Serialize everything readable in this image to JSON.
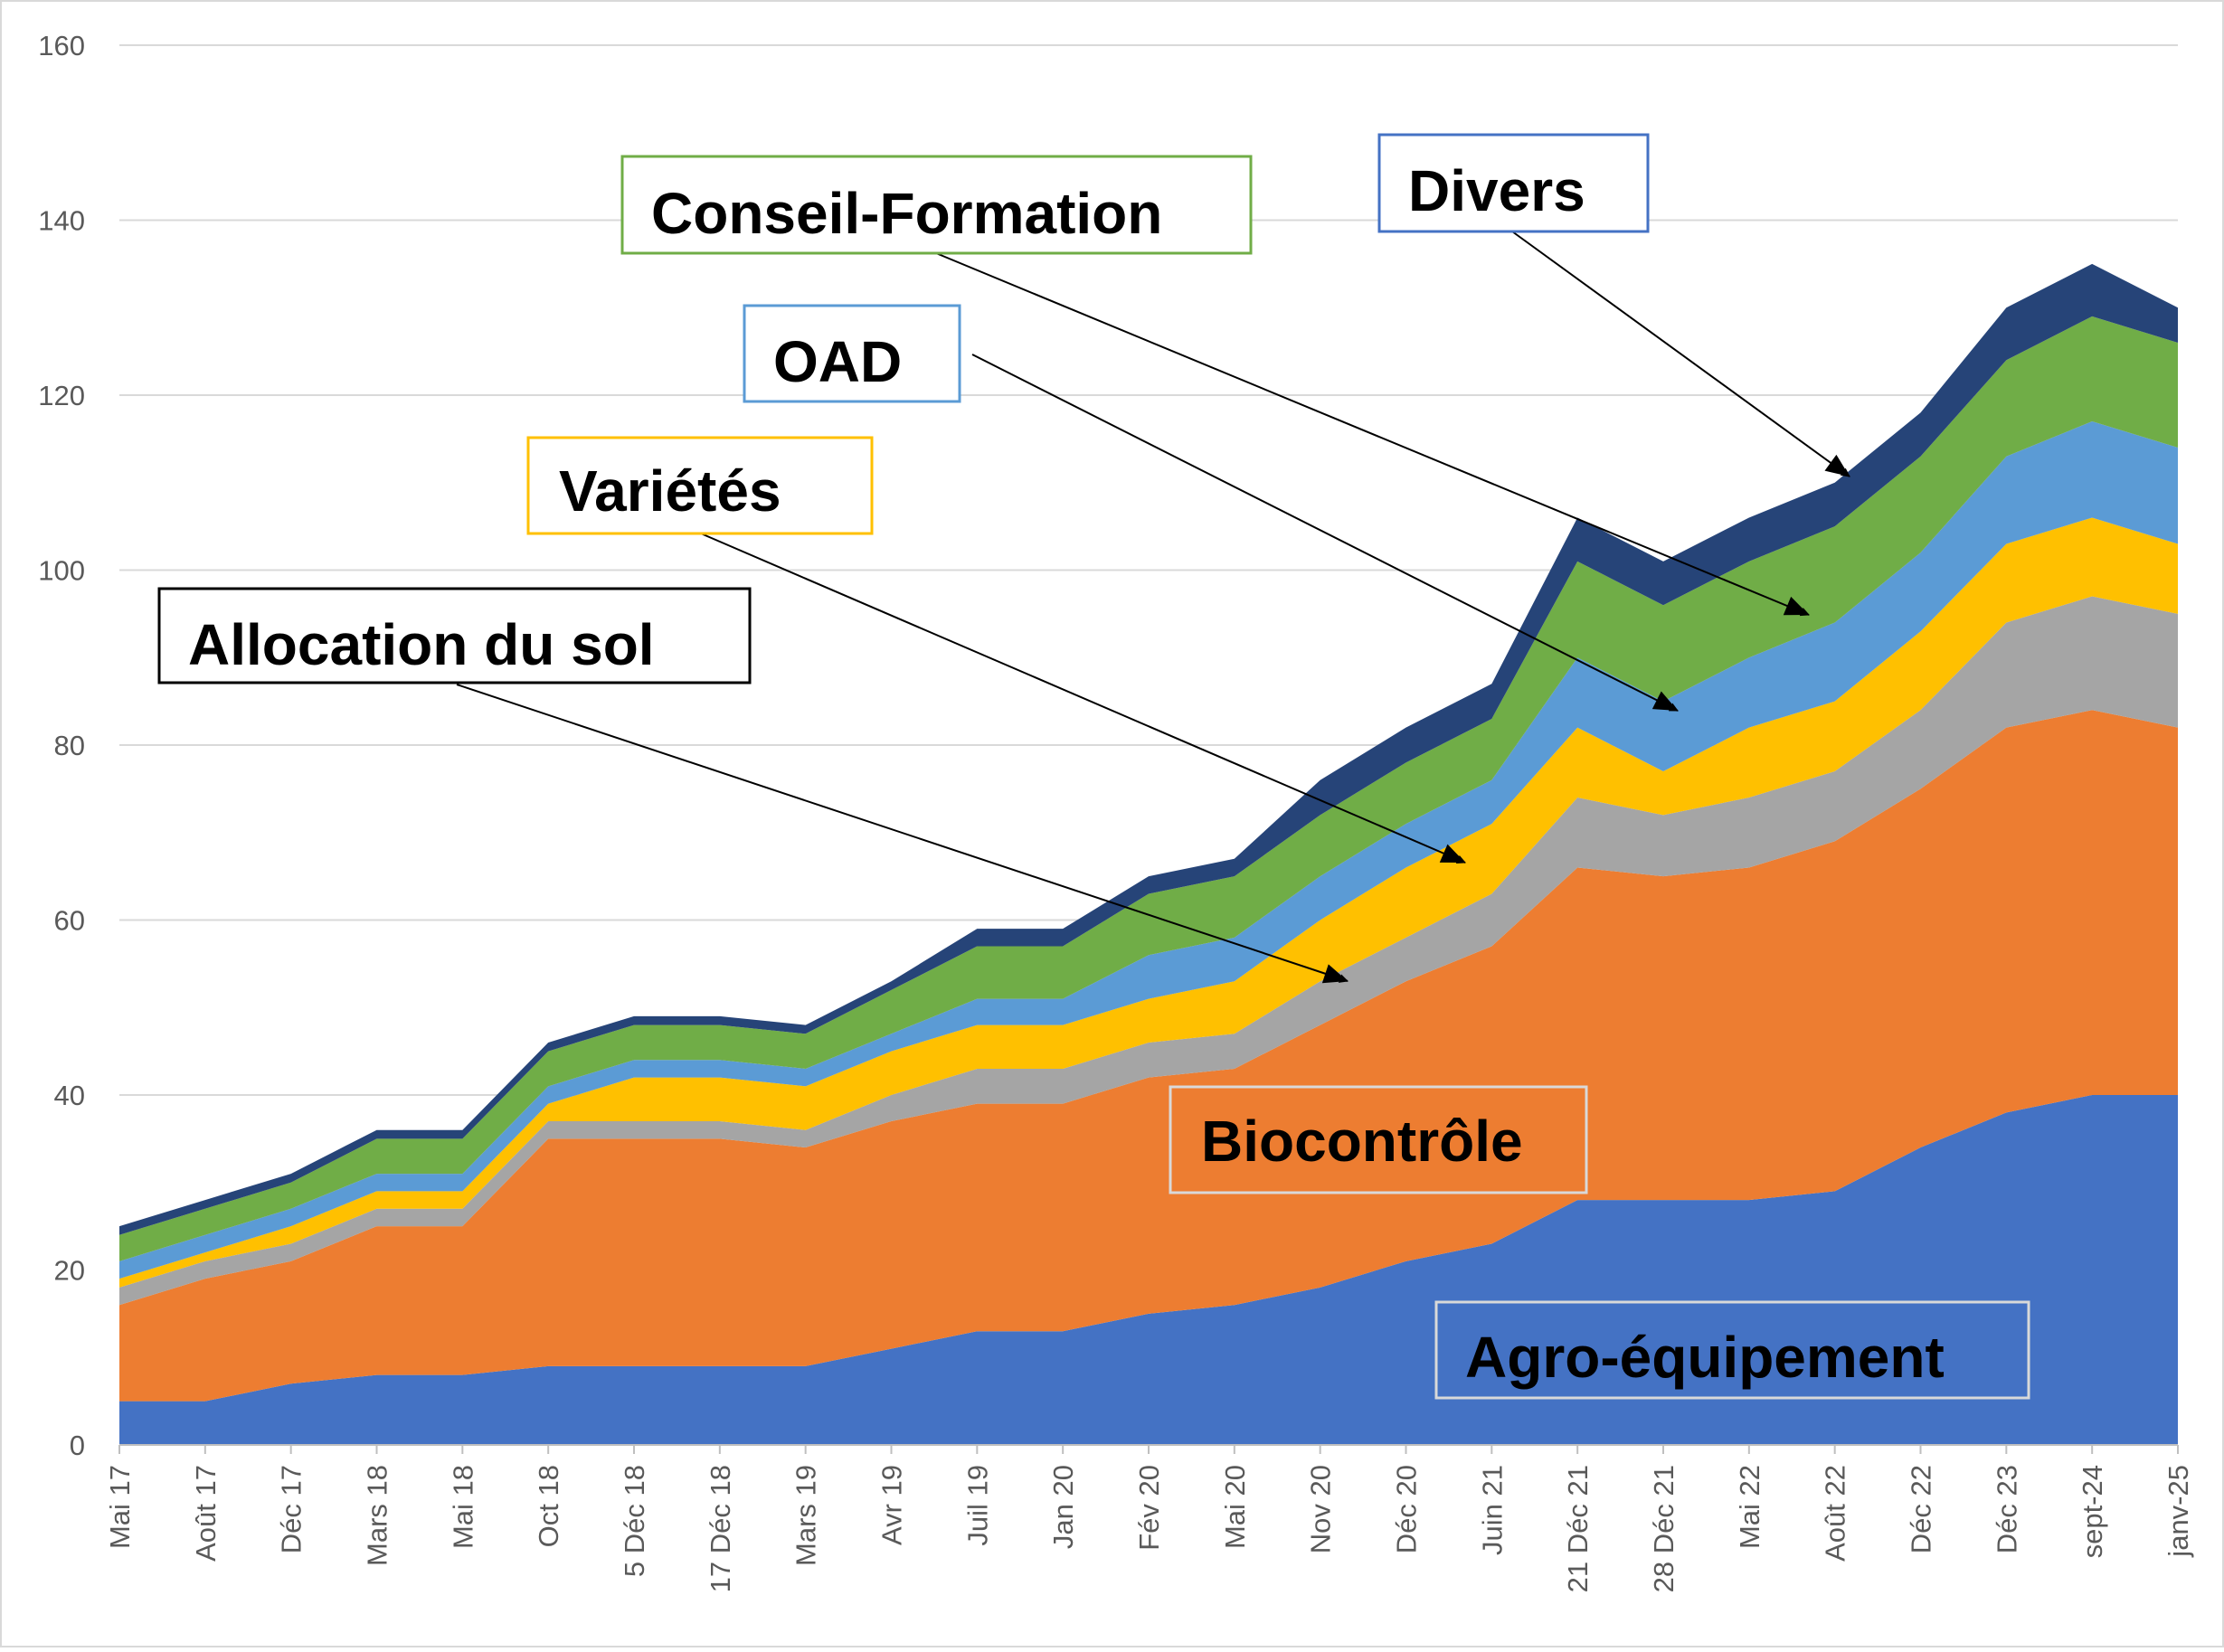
{
  "chart_data": {
    "type": "area",
    "stacked": true,
    "title": "",
    "xlabel": "",
    "ylabel": "",
    "ylim": [
      0,
      160
    ],
    "yticks": [
      0,
      20,
      40,
      60,
      80,
      100,
      120,
      140,
      160
    ],
    "grid": "horizontal",
    "legend": "none",
    "categories": [
      "Mai 17",
      "Août 17",
      "Déc 17",
      "Mars 18",
      "Mai 18",
      "Oct 18",
      "5 Déc 18",
      "17 Déc 18",
      "Mars 19",
      "Avr 19",
      "Juil 19",
      "Jan 20",
      "Fév 20",
      "Mai 20",
      "Nov 20",
      "Déc 20",
      "Juin 21",
      "21 Déc 21",
      "28 Déc 21",
      "Mai 22",
      "Août 22",
      "Déc 22",
      "Déc 23",
      "sept-24",
      "janv-25"
    ],
    "series": [
      {
        "name": "Agro-équipement",
        "color": "#4472C4",
        "values": [
          5,
          5,
          7,
          8,
          8,
          9,
          9,
          9,
          9,
          11,
          13,
          13,
          15,
          16,
          18,
          21,
          23,
          28,
          28,
          28,
          29,
          34,
          38,
          40,
          40
        ]
      },
      {
        "name": "Biocontrôle",
        "color": "#ED7D31",
        "values": [
          11,
          14,
          14,
          17,
          17,
          26,
          26,
          26,
          25,
          26,
          26,
          26,
          27,
          27,
          30,
          32,
          34,
          38,
          37,
          38,
          40,
          41,
          44,
          44,
          42
        ]
      },
      {
        "name": "Allocation du sol",
        "color": "#A5A5A5",
        "values": [
          2,
          2,
          2,
          2,
          2,
          2,
          2,
          2,
          2,
          3,
          4,
          4,
          4,
          4,
          5,
          5,
          6,
          8,
          7,
          8,
          8,
          9,
          12,
          13,
          13
        ]
      },
      {
        "name": "Variétés",
        "color": "#FFC000",
        "values": [
          1,
          1,
          2,
          2,
          2,
          2,
          5,
          5,
          5,
          5,
          5,
          5,
          5,
          6,
          7,
          8,
          8,
          8,
          5,
          8,
          8,
          9,
          9,
          9,
          8
        ]
      },
      {
        "name": "OAD",
        "color": "#5B9BD5",
        "values": [
          2,
          2,
          2,
          2,
          2,
          2,
          2,
          2,
          2,
          2,
          3,
          3,
          5,
          5,
          5,
          5,
          5,
          8,
          8,
          8,
          9,
          9,
          10,
          11,
          11
        ]
      },
      {
        "name": "Conseil-Formation",
        "color": "#70AD47",
        "values": [
          3,
          3,
          3,
          4,
          4,
          4,
          4,
          4,
          4,
          5,
          6,
          6,
          7,
          7,
          7,
          7,
          7,
          11,
          11,
          11,
          11,
          11,
          11,
          12,
          12
        ]
      },
      {
        "name": "Divers",
        "color": "#264478",
        "values": [
          1,
          1,
          1,
          1,
          1,
          1,
          1,
          1,
          1,
          1,
          2,
          2,
          2,
          2,
          4,
          4,
          4,
          5,
          5,
          5,
          5,
          5,
          6,
          6,
          4
        ]
      }
    ],
    "annotations": [
      {
        "text": "Agro-équipement",
        "series": "Agro-équipement",
        "box_color": "#D9D9D9",
        "arrow": false
      },
      {
        "text": "Biocontrôle",
        "series": "Biocontrôle",
        "box_color": "#D9D9D9",
        "arrow": false
      },
      {
        "text": "Allocation du sol",
        "series": "Allocation du sol",
        "box_color": "#000000",
        "arrow": true
      },
      {
        "text": "Variétés",
        "series": "Variétés",
        "box_color": "#FFC000",
        "arrow": true
      },
      {
        "text": "OAD",
        "series": "OAD",
        "box_color": "#5B9BD5",
        "arrow": true
      },
      {
        "text": "Conseil-Formation",
        "series": "Conseil-Formation",
        "box_color": "#70AD47",
        "arrow": true
      },
      {
        "text": "Divers",
        "series": "Divers",
        "box_color": "#4472C4",
        "arrow": true
      }
    ]
  }
}
